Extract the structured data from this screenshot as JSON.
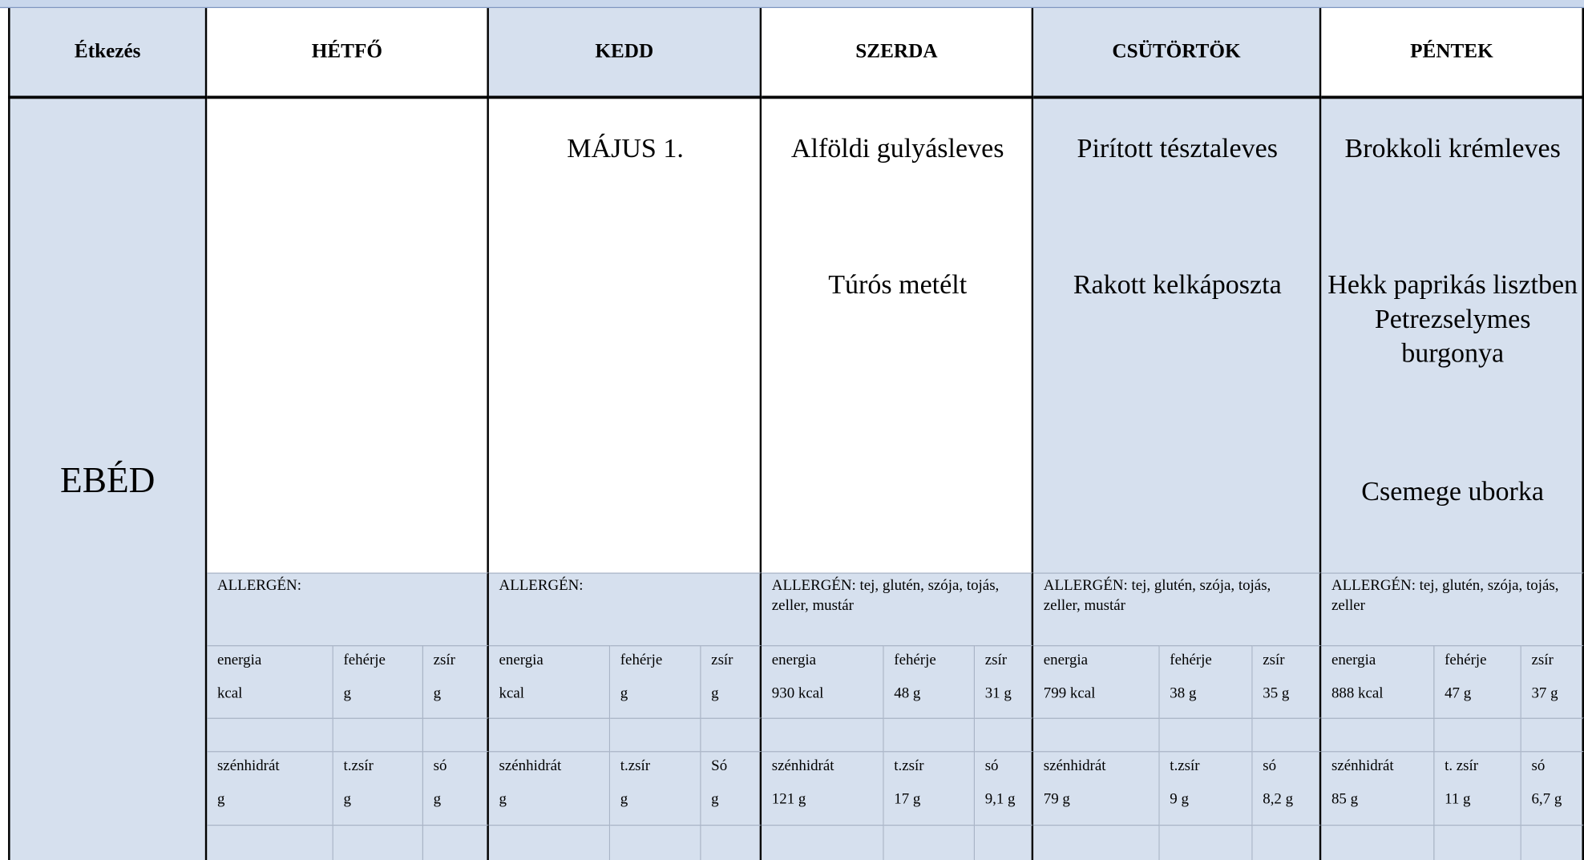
{
  "header": {
    "meal_label": "Étkezés",
    "days": [
      "HÉTFŐ",
      "KEDD",
      "SZERDA",
      "CSÜTÖRTÖK",
      "PÉNTEK"
    ]
  },
  "meal": "EBÉD",
  "days": [
    {
      "dishes": [],
      "allergen": "ALLERGÉN:",
      "nutrition": [
        [
          "energia",
          "fehérje",
          "zsír"
        ],
        [
          "kcal",
          "g",
          "g"
        ],
        [
          "szénhidrát",
          "t.zsír",
          "só"
        ],
        [
          "g",
          "g",
          "g"
        ]
      ]
    },
    {
      "dishes": [
        "MÁJUS 1."
      ],
      "allergen": "ALLERGÉN:",
      "nutrition": [
        [
          "energia",
          "fehérje",
          "zsír"
        ],
        [
          "kcal",
          "g",
          "g"
        ],
        [
          "szénhidrát",
          "t.zsír",
          "Só"
        ],
        [
          "g",
          "g",
          "g"
        ]
      ]
    },
    {
      "dishes": [
        "Alföldi gulyásleves",
        "Túrós metélt"
      ],
      "allergen": "ALLERGÉN: tej, glutén, szója, tojás, zeller, mustár",
      "nutrition": [
        [
          "energia",
          "fehérje",
          "zsír"
        ],
        [
          "930 kcal",
          "48 g",
          "31 g"
        ],
        [
          "szénhidrát",
          "t.zsír",
          "só"
        ],
        [
          "121 g",
          "17 g",
          "9,1 g"
        ]
      ]
    },
    {
      "dishes": [
        "Pirított tésztaleves",
        "Rakott kelkáposzta"
      ],
      "allergen": "ALLERGÉN: tej, glutén, szója, tojás, zeller, mustár",
      "nutrition": [
        [
          "energia",
          "fehérje",
          "zsír"
        ],
        [
          "799 kcal",
          "38 g",
          "35 g"
        ],
        [
          "szénhidrát",
          "t.zsír",
          "só"
        ],
        [
          "79 g",
          "9 g",
          "8,2 g"
        ]
      ]
    },
    {
      "dishes": [
        "Brokkoli krémleves",
        "Hekk paprikás lisztben Petrezselymes burgonya",
        "Csemege uborka"
      ],
      "allergen": "ALLERGÉN: tej, glutén, szója, tojás, zeller",
      "nutrition": [
        [
          "energia",
          "fehérje",
          "zsír"
        ],
        [
          "888 kcal",
          "47 g",
          "37 g"
        ],
        [
          "szénhidrát",
          "t. zsír",
          "só"
        ],
        [
          "85 g",
          "11 g",
          "6,7 g"
        ]
      ]
    }
  ]
}
